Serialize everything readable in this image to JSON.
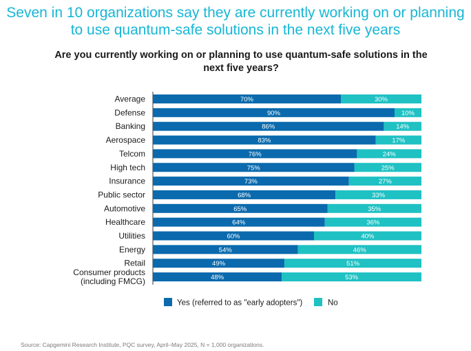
{
  "headline": "Seven in 10 organizations say they are currently working on or planning to use quantum-safe solutions in the next five years",
  "source": "Source: Capgemini Research Institute, PQC survey, April–May 2025, N = 1,000 organizations.",
  "colors": {
    "yes": "#0a6aad",
    "no": "#1fc1c3"
  },
  "chart_data": {
    "type": "bar",
    "orientation": "horizontal",
    "stacked": true,
    "title": "Are you currently working on or planning to use quantum-safe solutions in the next five years?",
    "categories": [
      "Average",
      "Defense",
      "Banking",
      "Aerospace",
      "Telcom",
      "High tech",
      "Insurance",
      "Public sector",
      "Automotive",
      "Healthcare",
      "Utilities",
      "Energy",
      "Retail",
      "Consumer products (including FMCG)"
    ],
    "category_lines": [
      [
        "Average"
      ],
      [
        "Defense"
      ],
      [
        "Banking"
      ],
      [
        "Aerospace"
      ],
      [
        "Telcom"
      ],
      [
        "High tech"
      ],
      [
        "Insurance"
      ],
      [
        "Public sector"
      ],
      [
        "Automotive"
      ],
      [
        "Healthcare"
      ],
      [
        "Utilities"
      ],
      [
        "Energy"
      ],
      [
        "Retail"
      ],
      [
        "Consumer products",
        "(including FMCG)"
      ]
    ],
    "series": [
      {
        "name": "Yes (referred to as \"early adopters\")",
        "values": [
          70,
          90,
          86,
          83,
          76,
          75,
          73,
          68,
          65,
          64,
          60,
          54,
          49,
          48
        ]
      },
      {
        "name": "No",
        "values": [
          30,
          10,
          14,
          17,
          24,
          25,
          27,
          33,
          35,
          36,
          40,
          46,
          51,
          53
        ]
      }
    ],
    "xlim": [
      0,
      100
    ],
    "unit": "%",
    "legend": "bottom"
  }
}
